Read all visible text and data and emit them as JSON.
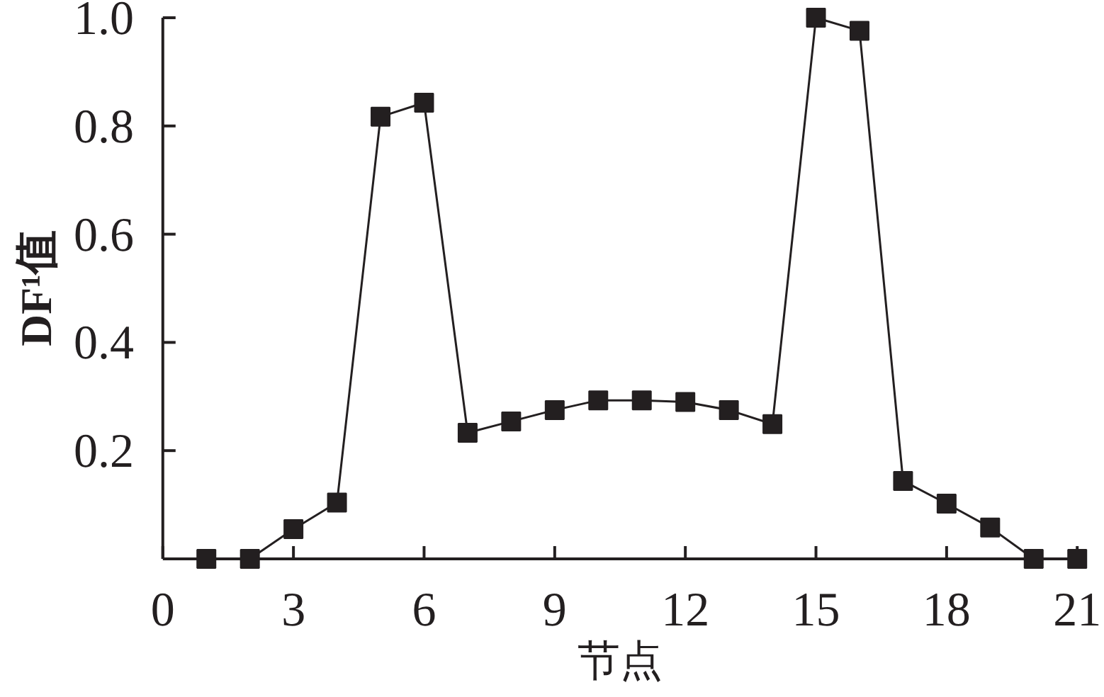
{
  "chart_data": {
    "type": "line",
    "xlabel": "节点",
    "ylabel": "DF¹值",
    "x": [
      1,
      2,
      3,
      4,
      5,
      6,
      7,
      8,
      9,
      10,
      11,
      12,
      13,
      14,
      15,
      16,
      17,
      18,
      19,
      20,
      21
    ],
    "series": [
      {
        "color": "#231f20",
        "values": [
          0,
          0,
          0.055,
          0.104,
          0.817,
          0.843,
          0.233,
          0.254,
          0.275,
          0.293,
          0.293,
          0.29,
          0.275,
          0.249,
          1.0,
          0.976,
          0.144,
          0.102,
          0.058,
          0,
          0
        ]
      }
    ],
    "xlim": [
      0,
      21
    ],
    "ylim": [
      0,
      1.0
    ],
    "xticks": [
      0,
      3,
      6,
      9,
      12,
      15,
      18,
      21
    ],
    "yticks": [
      0.2,
      0.4,
      0.6,
      0.8,
      {
        "value": 1.0,
        "label": "1.0"
      }
    ],
    "marker": "square",
    "line_style": "solid"
  }
}
